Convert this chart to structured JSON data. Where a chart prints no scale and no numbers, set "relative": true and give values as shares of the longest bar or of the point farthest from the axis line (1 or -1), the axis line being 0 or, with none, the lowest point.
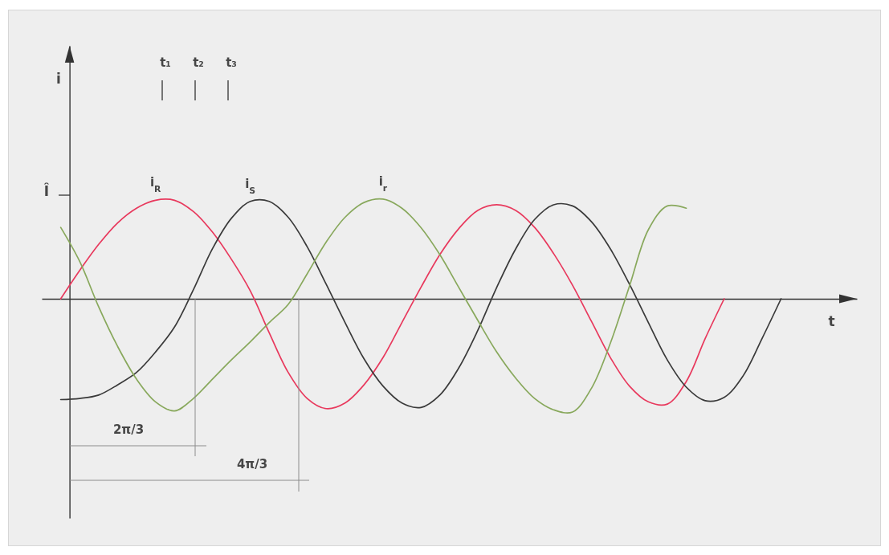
{
  "chart_data": {
    "type": "line",
    "relative": true,
    "xlabel": "t",
    "categories": [
      null,
      null,
      null,
      null,
      null,
      null,
      null,
      null,
      null,
      null,
      null,
      null,
      null,
      null,
      null,
      null,
      null,
      null,
      null,
      null,
      null,
      null,
      null,
      null,
      null,
      null,
      null,
      null,
      null,
      null,
      null,
      null,
      null,
      null,
      null,
      null,
      null,
      null,
      null,
      null,
      null,
      null
    ],
    "annotations": [
      "t₁",
      "t₂",
      "t₃",
      "i",
      "Î",
      "2π/3",
      "4π/3"
    ],
    "series": [
      {
        "name": "i$_{R}$",
        "color": "#e8395d",
        "values": [
          0,
          0.25,
          0.48,
          0.67,
          0.8,
          0.87,
          0.87,
          0.77,
          0.59,
          0.35,
          0.07,
          -0.3,
          -0.65,
          -0.88,
          -0.97,
          -0.92,
          -0.76,
          -0.52,
          -0.21,
          0.1,
          0.39,
          0.62,
          0.78,
          0.83,
          0.78,
          0.63,
          0.4,
          0.12,
          -0.2,
          -0.52,
          -0.77,
          -0.91,
          -0.93,
          -0.73,
          -0.35,
          0,
          null,
          null,
          null,
          null,
          null,
          null
        ]
      },
      {
        "name": "i$_{S}$",
        "color": "#3a3a3a",
        "values": [
          -0.89,
          -0.88,
          -0.85,
          -0.76,
          -0.65,
          -0.47,
          -0.25,
          0.08,
          0.44,
          0.71,
          0.86,
          0.86,
          0.72,
          0.46,
          0.13,
          -0.21,
          -0.53,
          -0.77,
          -0.92,
          -0.96,
          -0.85,
          -0.61,
          -0.28,
          0.1,
          0.44,
          0.7,
          0.83,
          0.82,
          0.68,
          0.44,
          0.13,
          -0.21,
          -0.54,
          -0.78,
          -0.9,
          -0.87,
          -0.68,
          -0.35,
          0,
          null,
          null,
          null
        ]
      },
      {
        "name": "i$_{r}$",
        "color": "#88a85c",
        "values": [
          0.63,
          0.33,
          -0.07,
          -0.42,
          -0.71,
          -0.91,
          -0.99,
          -0.88,
          -0.71,
          -0.54,
          -0.38,
          -0.21,
          -0.05,
          0.22,
          0.5,
          0.72,
          0.85,
          0.88,
          0.8,
          0.63,
          0.39,
          0.1,
          -0.19,
          -0.47,
          -0.7,
          -0.88,
          -0.98,
          -1,
          -0.79,
          -0.39,
          0.11,
          0.61,
          0.82,
          0.8,
          null,
          null,
          null,
          null,
          null,
          null,
          null,
          null
        ]
      }
    ]
  }
}
